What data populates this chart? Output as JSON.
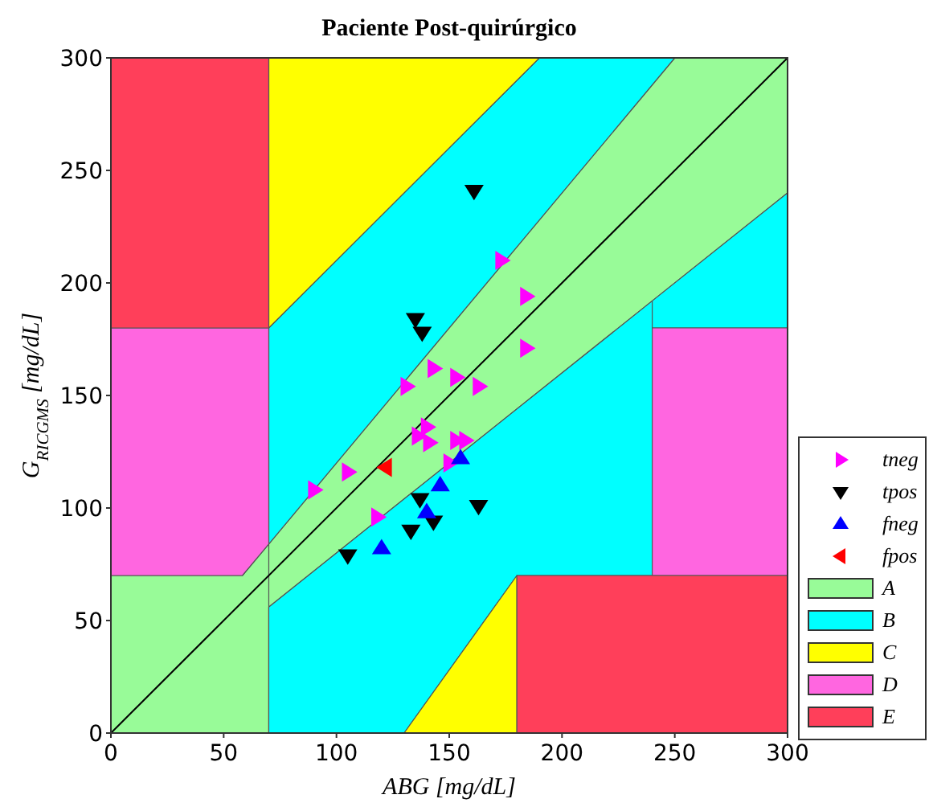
{
  "chart_data": {
    "type": "scatter",
    "title": "Paciente Post-quirúrgico",
    "xlabel": "ABG [mg/dL]",
    "ylabel": "G$_{RICGMS}$ [mg/dL]",
    "xlim": [
      0,
      300
    ],
    "ylim": [
      0,
      300
    ],
    "xticks": [
      0,
      50,
      100,
      150,
      200,
      250,
      300
    ],
    "yticks": [
      0,
      50,
      100,
      150,
      200,
      250,
      300
    ],
    "grid": false,
    "legend": "right",
    "series": [
      {
        "type": "line",
        "name": "A",
        "color": "#98fb98",
        "x": [
          0,
          58.3,
          70,
          null,
          70,
          250,
          300
        ],
        "values": [
          null,
          null,
          null,
          null,
          null,
          null,
          null
        ],
        "upper": [
          70,
          70,
          84,
          null,
          84,
          300,
          300
        ],
        "lower": [
          0,
          0,
          0,
          null,
          56,
          200,
          240
        ]
      },
      {
        "type": "line",
        "name": "B",
        "color": "#00ffff",
        "x": [
          70,
          190,
          250,
          null,
          70,
          130,
          180,
          240,
          null,
          240,
          300
        ],
        "values": [
          null,
          null,
          null,
          null,
          null,
          null,
          null,
          null,
          null,
          null,
          null
        ],
        "upper": [
          180,
          300,
          300,
          null,
          56,
          104,
          144,
          192,
          null,
          192,
          240
        ],
        "lower": [
          84,
          228,
          300,
          null,
          0,
          0,
          70,
          70,
          null,
          180,
          180
        ]
      },
      {
        "type": "line",
        "name": "C",
        "color": "#ffff00",
        "x": [
          70,
          190,
          null,
          130,
          180
        ],
        "values": [
          null,
          null,
          null,
          null,
          null
        ],
        "upper": [
          300,
          300,
          null,
          0,
          70
        ],
        "lower": [
          180,
          300,
          null,
          0,
          0
        ]
      },
      {
        "type": "line",
        "name": "D",
        "color": "#ff66e0",
        "x": [
          0,
          58.3,
          70,
          null,
          240,
          300
        ],
        "values": [
          null,
          null,
          null,
          null,
          null,
          null
        ],
        "upper": [
          180,
          180,
          180,
          null,
          180,
          180
        ],
        "lower": [
          70,
          70,
          84,
          null,
          70,
          70
        ]
      },
      {
        "type": "line",
        "name": "E",
        "color": "#ff3f5a",
        "x": [
          0,
          70,
          null,
          180,
          300
        ],
        "values": [
          null,
          null,
          null,
          null,
          null
        ],
        "upper": [
          300,
          300,
          null,
          70,
          70
        ],
        "lower": [
          180,
          180,
          null,
          0,
          0
        ]
      },
      {
        "type": "line",
        "color": "#000000",
        "x": [
          0,
          300
        ],
        "values": [
          0,
          300
        ]
      },
      {
        "name": "tneg",
        "color": "#ff00ff",
        "marker": "triangle-right",
        "x": [
          173,
          184,
          184,
          143,
          153,
          163,
          131,
          140,
          136,
          141,
          153,
          157,
          150,
          105,
          90,
          118
        ],
        "values": [
          210,
          194,
          171,
          162,
          158,
          154,
          154,
          136,
          132,
          129,
          130,
          130,
          120,
          116,
          108,
          96
        ]
      },
      {
        "name": "tpos",
        "color": "#000000",
        "marker": "triangle-down",
        "x": [
          161,
          135,
          138,
          137,
          163,
          143,
          133,
          105
        ],
        "values": [
          241,
          184,
          178,
          104,
          101,
          94,
          90,
          79
        ]
      },
      {
        "name": "fneg",
        "color": "#0000ff",
        "marker": "triangle-up",
        "x": [
          155,
          146,
          140,
          120
        ],
        "values": [
          122,
          110,
          98,
          82
        ]
      },
      {
        "name": "fpos",
        "color": "#ff0000",
        "marker": "triangle-left",
        "x": [
          122
        ],
        "values": [
          118
        ]
      }
    ]
  }
}
